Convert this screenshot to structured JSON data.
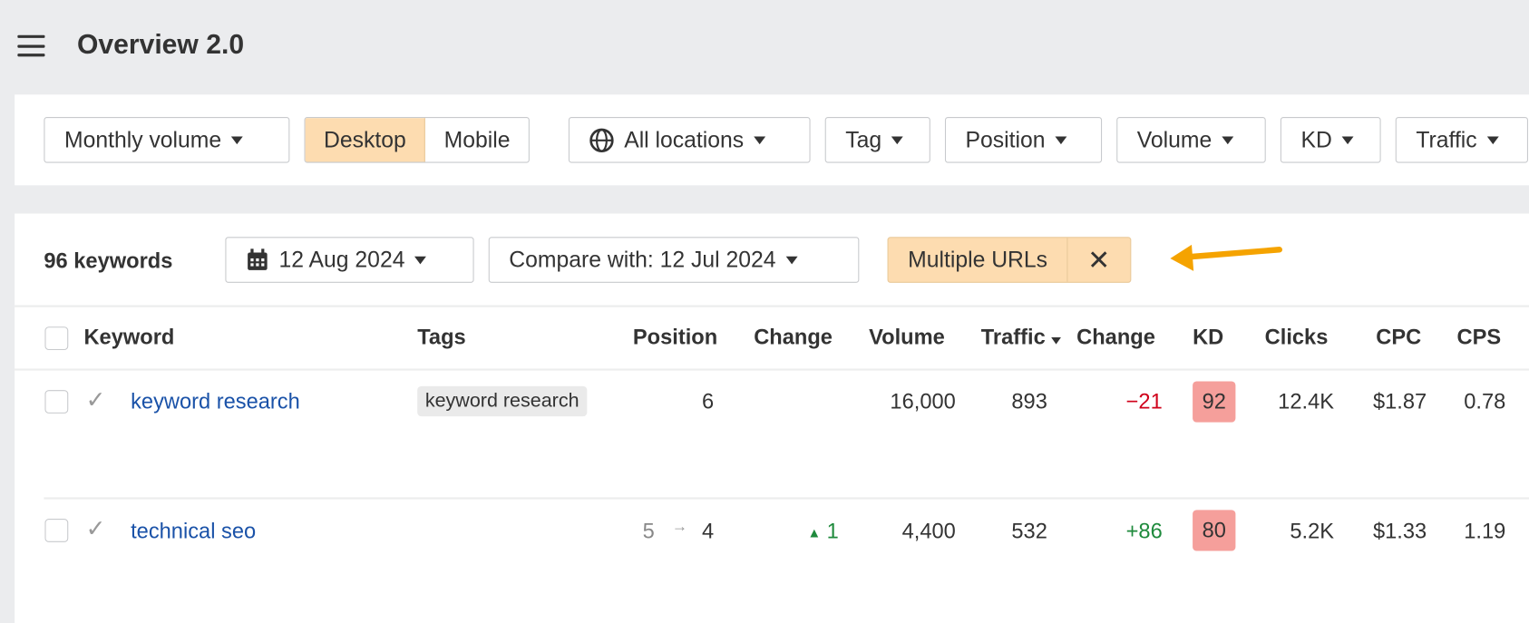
{
  "header": {
    "title": "Overview 2.0",
    "menu_icon": "hamburger-icon"
  },
  "filters": {
    "monthly_volume": "Monthly volume",
    "device": {
      "options": [
        "Desktop",
        "Mobile"
      ],
      "selected": "Desktop"
    },
    "locations": "All locations",
    "tag": "Tag",
    "position": "Position",
    "volume": "Volume",
    "kd": "KD",
    "traffic": "Traffic"
  },
  "toolbar": {
    "keyword_count": "96 keywords",
    "date": "12 Aug 2024",
    "compare": "Compare with: 12 Jul 2024",
    "url_filter": "Multiple URLs",
    "close": "✕"
  },
  "colors": {
    "accent": "#fddcb0",
    "arrow": "#f5a300",
    "link": "#1a52a8",
    "negative": "#d0021b",
    "positive": "#1e8a3c",
    "kd_badge": "#f59f9b"
  },
  "table": {
    "columns": [
      "Keyword",
      "Tags",
      "Position",
      "Change",
      "Volume",
      "Traffic",
      "Change",
      "KD",
      "Clicks",
      "CPC",
      "CPS"
    ],
    "sort_column": "Traffic",
    "rows": [
      {
        "keyword": "keyword research",
        "tag": "keyword research",
        "position_prev": "",
        "position": "6",
        "change": "",
        "volume": "16,000",
        "traffic": "893",
        "traffic_change": "−21",
        "kd": "92",
        "clicks": "12.4K",
        "cpc": "$1.87",
        "cps": "0.78"
      },
      {
        "keyword": "technical seo",
        "tag": "",
        "position_prev": "5",
        "position": "4",
        "change": "1",
        "volume": "4,400",
        "traffic": "532",
        "traffic_change": "+86",
        "kd": "80",
        "clicks": "5.2K",
        "cpc": "$1.33",
        "cps": "1.19"
      }
    ]
  }
}
